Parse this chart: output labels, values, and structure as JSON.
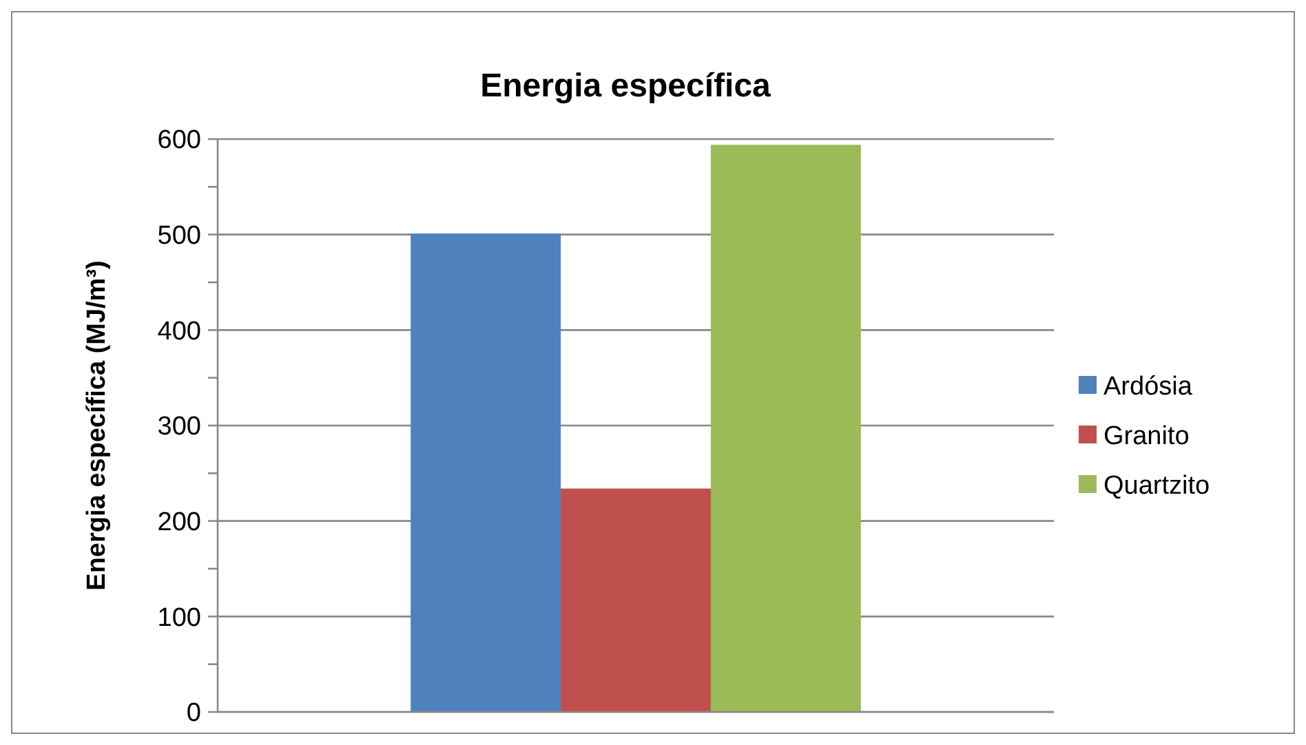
{
  "chart_data": {
    "type": "bar",
    "title": "Energia específica",
    "ylabel": "Energia específica (MJ/m³)",
    "categories": [
      null
    ],
    "series": [
      {
        "name": "Ardósia",
        "color": "#4f81bd",
        "values": [
          501
        ]
      },
      {
        "name": "Granito",
        "color": "#c0504d",
        "values": [
          234
        ]
      },
      {
        "name": "Quartzito",
        "color": "#9bbb59",
        "values": [
          594
        ]
      }
    ],
    "ylim": [
      0,
      600
    ],
    "yticks": [
      0,
      {
        "value": 50,
        "label": null
      },
      100,
      {
        "value": 150,
        "label": null
      },
      200,
      {
        "value": 250,
        "label": null
      },
      300,
      {
        "value": 350,
        "label": null
      },
      400,
      {
        "value": 450,
        "label": null
      },
      500,
      {
        "value": 550,
        "label": null
      },
      600
    ],
    "grid": "y",
    "legend": "right"
  }
}
